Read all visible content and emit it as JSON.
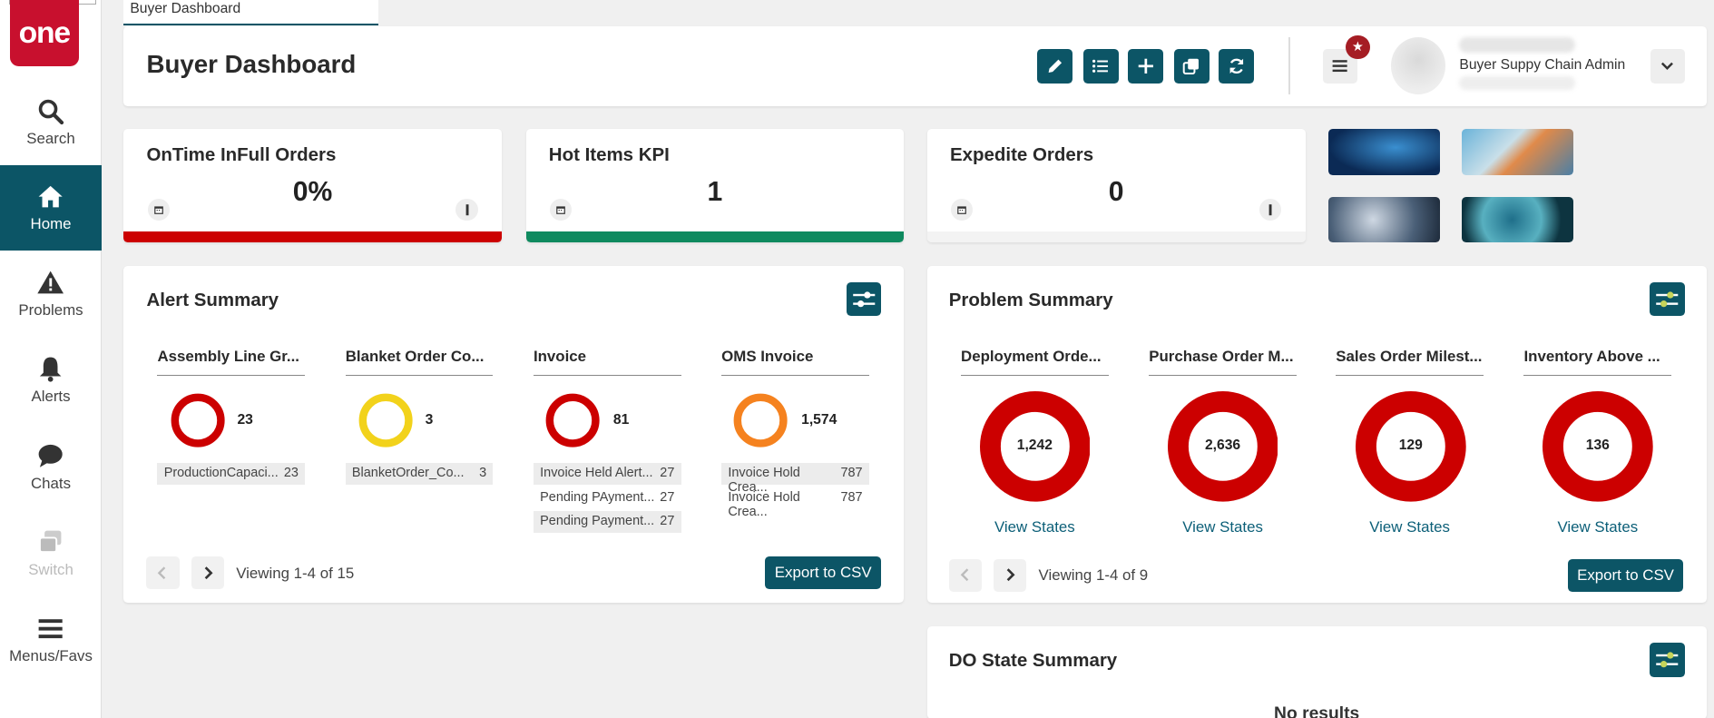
{
  "app": {
    "logo_text": "one",
    "tab_label": "Buyer Dashboard",
    "page_title": "Buyer Dashboard"
  },
  "sidebar": {
    "items": [
      {
        "label": "Search",
        "icon": "search-icon"
      },
      {
        "label": "Home",
        "icon": "home-icon",
        "active": true
      },
      {
        "label": "Problems",
        "icon": "warning-icon"
      },
      {
        "label": "Alerts",
        "icon": "bell-icon"
      },
      {
        "label": "Chats",
        "icon": "chat-icon"
      },
      {
        "label": "Switch",
        "icon": "switch-icon",
        "disabled": true
      },
      {
        "label": "Menus/Favs",
        "icon": "menu-icon"
      }
    ]
  },
  "toolbar": {
    "buttons": [
      "edit-icon",
      "list-icon",
      "plus-icon",
      "copy-icon",
      "refresh-icon"
    ],
    "accent": "#0c5566"
  },
  "user": {
    "role": "Buyer Suppy Chain Admin",
    "notification_badge": "★"
  },
  "kpis": [
    {
      "title": "OnTime InFull Orders",
      "value": "0%",
      "bar_color": "#cc0000"
    },
    {
      "title": "Hot Items KPI",
      "value": "1",
      "bar_color": "#0f8a5f"
    },
    {
      "title": "Expedite Orders",
      "value": "0",
      "bar_color": "#f3f3f3"
    }
  ],
  "alert_summary": {
    "title": "Alert Summary",
    "columns": [
      {
        "title": "Assembly Line Gr...",
        "count": "23",
        "ring_color": "#cc0000",
        "rows": [
          {
            "label": "ProductionCapaci...",
            "value": "23"
          }
        ]
      },
      {
        "title": "Blanket Order Co...",
        "count": "3",
        "ring_color": "#f2d21b",
        "rows": [
          {
            "label": "BlanketOrder_Co...",
            "value": "3"
          }
        ]
      },
      {
        "title": "Invoice",
        "count": "81",
        "ring_color": "#cc0000",
        "rows": [
          {
            "label": "Invoice Held Alert...",
            "value": "27"
          },
          {
            "label": "Pending PAyment...",
            "value": "27"
          },
          {
            "label": "Pending Payment...",
            "value": "27"
          }
        ]
      },
      {
        "title": "OMS Invoice",
        "count": "1,574",
        "ring_color": "#f5821f",
        "rows": [
          {
            "label": "Invoice Hold Crea...",
            "value": "787"
          },
          {
            "label": "Invoice Hold Crea...",
            "value": "787"
          }
        ]
      }
    ],
    "viewing": "Viewing 1-4 of 15",
    "export_label": "Export to CSV"
  },
  "problem_summary": {
    "title": "Problem Summary",
    "columns": [
      {
        "title": "Deployment Orde...",
        "count": "1,242",
        "link": "View States"
      },
      {
        "title": "Purchase Order M...",
        "count": "2,636",
        "link": "View States"
      },
      {
        "title": "Sales Order Milest...",
        "count": "129",
        "link": "View States"
      },
      {
        "title": "Inventory Above ...",
        "count": "136",
        "link": "View States"
      }
    ],
    "ring_color": "#cc0000",
    "viewing": "Viewing 1-4 of 9",
    "export_label": "Export to CSV"
  },
  "do_state_summary": {
    "title": "DO State Summary",
    "empty_text": "No results"
  }
}
